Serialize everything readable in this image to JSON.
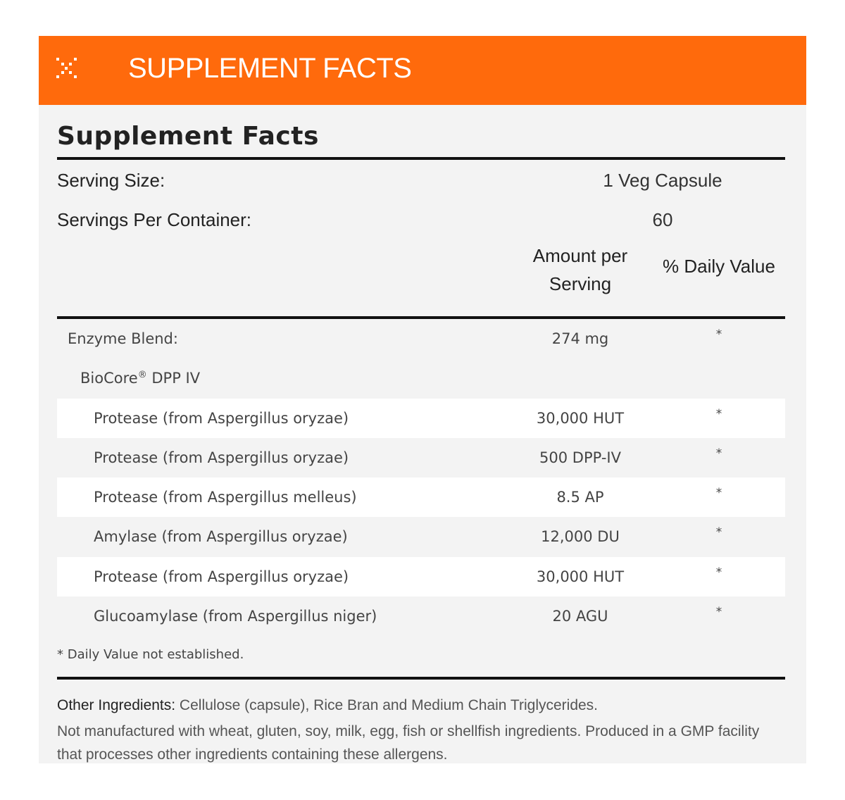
{
  "header": {
    "title": "SUPPLEMENT FACTS",
    "icon": "dots-x-icon",
    "color": "#ff6a0c"
  },
  "panel": {
    "title": "Supplement Facts",
    "serving_size_label": "Serving Size:",
    "serving_size_value": "1 Veg Capsule",
    "servings_label": "Servings Per Container:",
    "servings_value": "60",
    "col_amount_line1": "Amount per",
    "col_amount_line2": "Serving",
    "col_dv": "% Daily Value",
    "blend": {
      "name": "Enzyme Blend:",
      "amount": "274 mg",
      "dv": "*"
    },
    "sub": {
      "name": "BioCore",
      "reg": "®",
      "suffix": " DPP IV"
    },
    "ingredients": [
      {
        "name": "Protease (from Aspergillus oryzae)",
        "amount": "30,000 HUT",
        "dv": "*"
      },
      {
        "name": "Protease (from Aspergillus oryzae)",
        "amount": "500 DPP-IV",
        "dv": "*"
      },
      {
        "name": "Protease (from Aspergillus melleus)",
        "amount": "8.5 AP",
        "dv": "*"
      },
      {
        "name": "Amylase (from Aspergillus oryzae)",
        "amount": "12,000 DU",
        "dv": "*"
      },
      {
        "name": "Protease (from Aspergillus oryzae)",
        "amount": "30,000 HUT",
        "dv": "*"
      },
      {
        "name": "Glucoamylase (from Aspergillus niger)",
        "amount": "20 AGU",
        "dv": "*"
      }
    ],
    "footnote": "* Daily Value not established.",
    "other_label": "Other Ingredients:",
    "other_text": " Cellulose (capsule), Rice Bran and Medium Chain Triglycerides.",
    "allergen_text": "Not manufactured with wheat, gluten, soy, milk, egg, fish or shellfish ingredients. Produced in a GMP facility that processes other ingredients containing these allergens."
  }
}
